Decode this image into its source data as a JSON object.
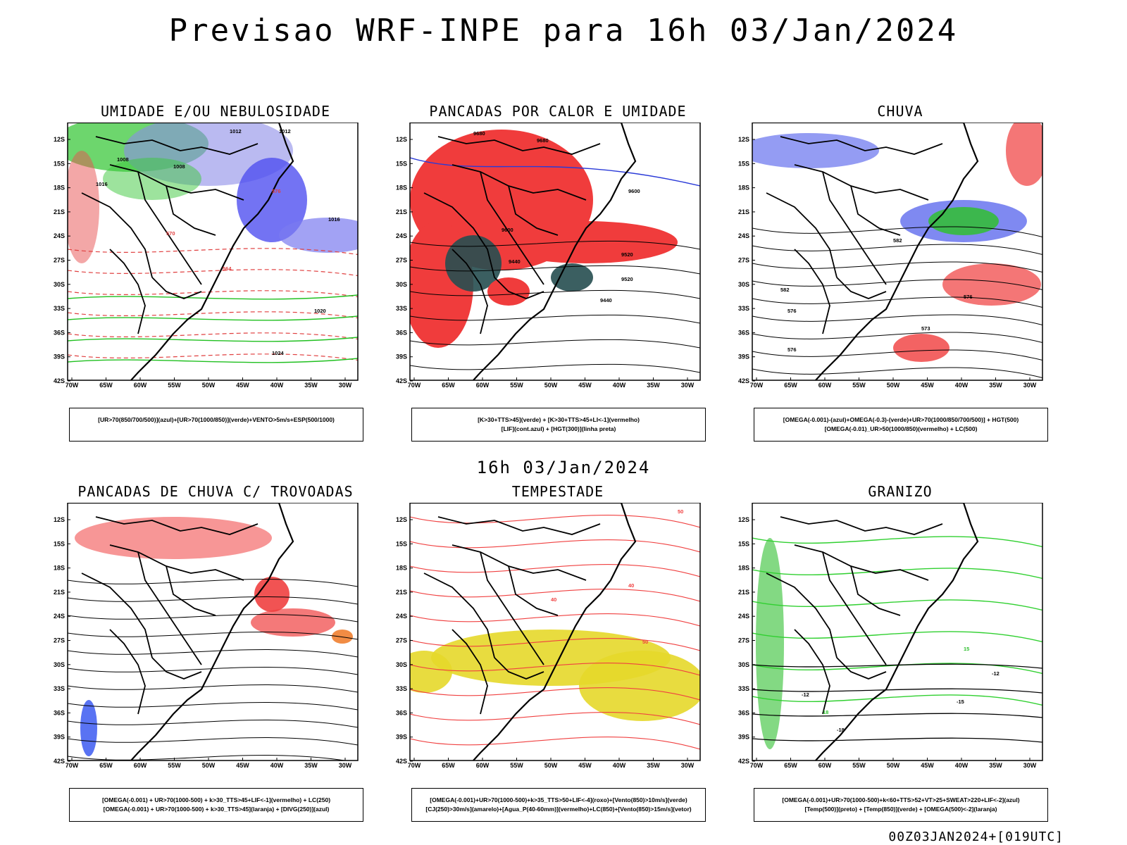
{
  "title": "Previsao WRF-INPE  para 16h 03/Jan/2024",
  "middle_date": "16h 03/Jan/2024",
  "footer": "00Z03JAN2024+[019UTC]",
  "axes": {
    "lat_labels": [
      "12S",
      "15S",
      "18S",
      "21S",
      "24S",
      "27S",
      "30S",
      "33S",
      "36S",
      "39S",
      "42S"
    ],
    "lon_labels": [
      "70W",
      "65W",
      "60W",
      "55W",
      "50W",
      "45W",
      "40W",
      "35W",
      "30W"
    ]
  },
  "panels": [
    {
      "title": "UMIDADE E/OU NEBULOSIDADE",
      "legend": [
        "[UR>70(850/700/500)](azul)+[UR>70(1000/850)](verde)+VENTO>5m/s+ESP(500/1000)"
      ],
      "contour_labels": [
        "1008",
        "1008",
        "1012",
        "1012",
        "1016",
        "1016",
        "1020",
        "1024",
        "570",
        "576",
        "564"
      ]
    },
    {
      "title": "PANCADAS POR CALOR E UMIDADE",
      "legend": [
        "[K>30+TTS>45](verde) + [K>30+TTS>45+LI<-1](vermelho)",
        "[LIF](cont.azul) + [HGT(300)](linha preta)"
      ],
      "contour_labels": [
        "9680",
        "9680",
        "9600",
        "9600",
        "9520",
        "9520",
        "9440",
        "9440"
      ]
    },
    {
      "title": "CHUVA",
      "legend": [
        "[OMEGA(-0.001)-(azul)+OMEGA(-0.3)-(verde)+UR>70(1000/850/700/500)] + HGT(500)",
        "[OMEGA(-0.01)_UR>50(1000/850)(vermelho) + LC(500)"
      ],
      "contour_labels": [
        "582",
        "582",
        "576",
        "576",
        "573",
        "576"
      ]
    },
    {
      "title": "PANCADAS DE CHUVA C/ TROVOADAS",
      "legend": [
        "[OMEGA(-0.001) + UR>70(1000-500) + k>30_TTS>45+LIF<-1](vermelho) + LC(250)",
        "[OMEGA(-0.001) + UR>70(1000-500) + k>30_TTS>45](laranja) + [DIVG(250)](azul)"
      ],
      "contour_labels": []
    },
    {
      "title": "TEMPESTADE",
      "legend": [
        "[OMEGA(-0.001)+UR>70(1000-500)+k>35_TTS>50+LIF<-4](roxo)+[Vento(850)>10m/s](verde)",
        "[CJ(250)>30m/s](amarelo)+[Agua_P(40-60mm)](vermelho)+LC(850)+[Vento(850)>15m/s](vetor)"
      ],
      "contour_labels": [
        "50",
        "50",
        "40",
        "40"
      ]
    },
    {
      "title": "GRANIZO",
      "legend": [
        "[OMEGA(-0.001)+UR>70(1000-500)+k<60+TTS>52+VT>25+SWEAT>220+LIF<-2](azul)",
        "[Temp(500)](preto) + [Temp(850)](verde) + [OMEGA(500)<-2](laranja)"
      ],
      "contour_labels": [
        "-12",
        "-12",
        "-15",
        "-18",
        "15",
        "18"
      ]
    }
  ]
}
